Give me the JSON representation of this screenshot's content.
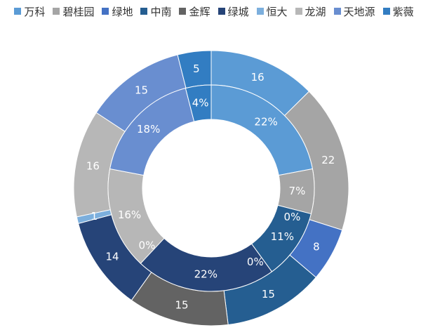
{
  "chart_data": {
    "type": "donut",
    "legend_position": "top",
    "categories": [
      "万科",
      "碧桂园",
      "绿地",
      "中南",
      "金辉",
      "绿城",
      "恒大",
      "龙湖",
      "天地源",
      "紫薇"
    ],
    "colors": [
      "#5B9BD5",
      "#A5A5A5",
      "#4472C4",
      "#255E91",
      "#636363",
      "#264478",
      "#7CAFDD",
      "#B7B7B7",
      "#698ED0",
      "#327DC2"
    ],
    "outer_ring": {
      "values": [
        16,
        22,
        8,
        15,
        15,
        14,
        1,
        16,
        15,
        5
      ],
      "labels": [
        "16",
        "22",
        "8",
        "15",
        "15",
        "14",
        "1",
        "16",
        "15",
        "5"
      ]
    },
    "inner_ring": {
      "values": [
        22,
        7,
        0,
        11,
        0,
        22,
        0,
        16,
        18,
        4
      ],
      "labels": [
        "22%",
        "7%",
        "0%",
        "11%",
        "0%",
        "22%",
        "0%",
        "16%",
        "18%",
        "4%"
      ]
    }
  }
}
